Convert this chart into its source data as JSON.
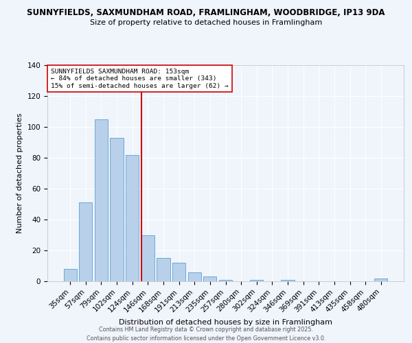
{
  "title_line1": "SUNNYFIELDS, SAXMUNDHAM ROAD, FRAMLINGHAM, WOODBRIDGE, IP13 9DA",
  "title_line2": "Size of property relative to detached houses in Framlingham",
  "xlabel": "Distribution of detached houses by size in Framlingham",
  "ylabel": "Number of detached properties",
  "bar_labels": [
    "35sqm",
    "57sqm",
    "79sqm",
    "102sqm",
    "124sqm",
    "146sqm",
    "168sqm",
    "191sqm",
    "213sqm",
    "235sqm",
    "257sqm",
    "280sqm",
    "302sqm",
    "324sqm",
    "346sqm",
    "369sqm",
    "391sqm",
    "413sqm",
    "435sqm",
    "458sqm",
    "480sqm"
  ],
  "bar_heights": [
    8,
    51,
    105,
    93,
    82,
    30,
    15,
    12,
    6,
    3,
    1,
    0,
    1,
    0,
    1,
    0,
    0,
    0,
    0,
    0,
    2
  ],
  "bar_color": "#b8d0ea",
  "bar_edge_color": "#6aaad4",
  "vline_color": "#cc0000",
  "ylim": [
    0,
    140
  ],
  "yticks": [
    0,
    20,
    40,
    60,
    80,
    100,
    120,
    140
  ],
  "annotation_line1": "SUNNYFIELDS SAXMUNDHAM ROAD: 153sqm",
  "annotation_line2": "← 84% of detached houses are smaller (343)",
  "annotation_line3": "15% of semi-detached houses are larger (62) →",
  "footer_line1": "Contains HM Land Registry data © Crown copyright and database right 2025.",
  "footer_line2": "Contains public sector information licensed under the Open Government Licence v3.0.",
  "background_color": "#f0f4fb",
  "plot_bg_color": "#f0f4fb",
  "grid_color": "#ffffff",
  "title1_fontsize": 8.5,
  "title2_fontsize": 8.0,
  "axis_label_fontsize": 8.0,
  "tick_fontsize": 7.5,
  "annotation_fontsize": 6.8,
  "footer_fontsize": 5.8
}
